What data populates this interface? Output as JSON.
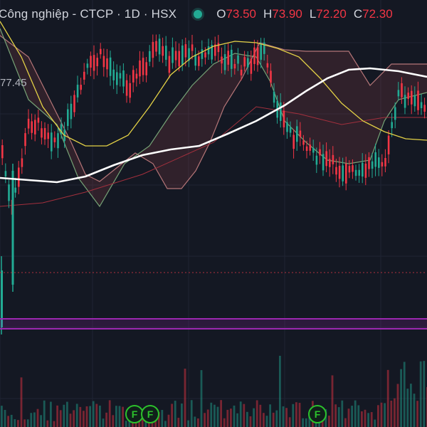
{
  "header": {
    "title": "Công nghiệp - CTCP · 1D · HSX",
    "ohlc": [
      {
        "key": "O",
        "value": "73.50"
      },
      {
        "key": "H",
        "value": "73.90"
      },
      {
        "key": "L",
        "value": "72.20"
      },
      {
        "key": "C",
        "value": "72.30"
      }
    ]
  },
  "price_label": "77.45",
  "event_flags": [
    "F",
    "F",
    "F"
  ],
  "colors": {
    "background": "#141823",
    "up": "#22ab94",
    "down": "#f23645",
    "ma_long": "#ffffff",
    "ma_mid": "#e3d146",
    "ichimoku_span_a": "#8bc48a",
    "ichimoku_span_b": "#d98c8c",
    "purple_band": "#9c27b0",
    "flag": "#2cc12c"
  },
  "icons": {
    "live_status": "live-dot-icon",
    "event_flag": "flag-icon"
  }
}
